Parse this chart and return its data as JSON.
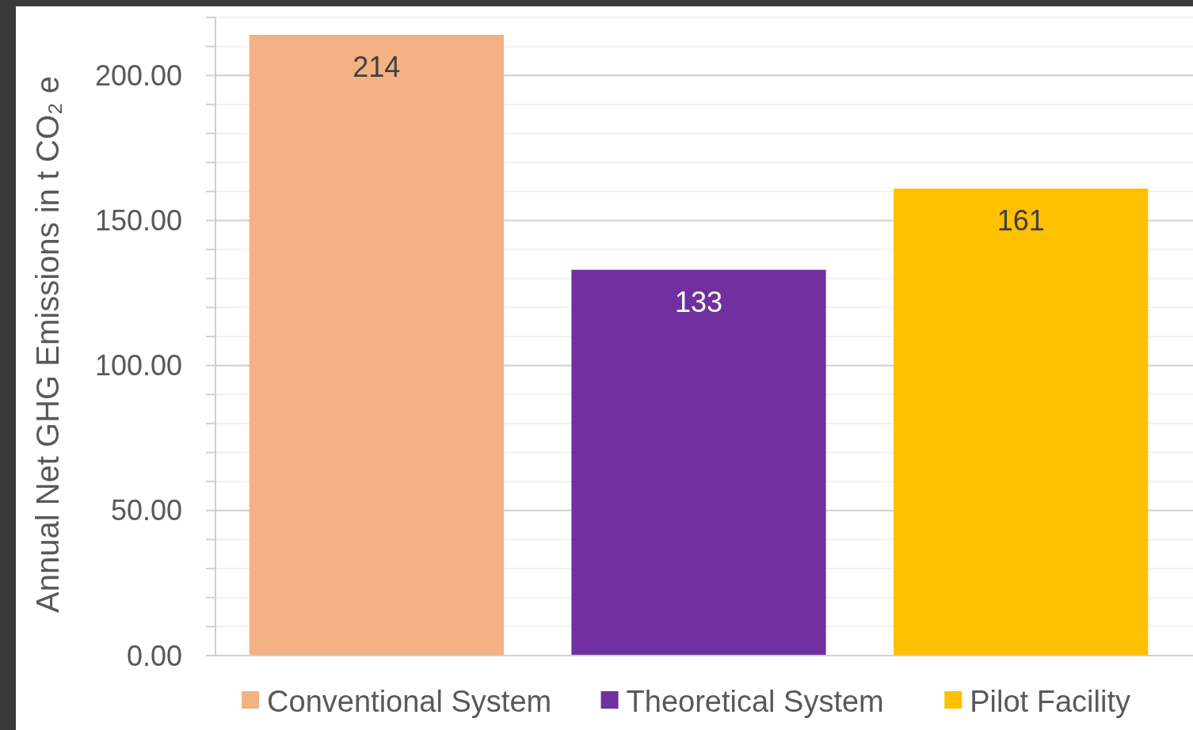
{
  "chart_data": {
    "type": "bar",
    "ylabel": "Annual Net GHG Emissions in t CO₂ e",
    "categories": [
      null,
      null,
      null
    ],
    "series": [
      {
        "name": "Conventional System",
        "color": "#f4b183",
        "values": [
          214,
          null,
          null
        ]
      },
      {
        "name": "Theoretical System",
        "color": "#7030a0",
        "values": [
          null,
          133,
          null
        ]
      },
      {
        "name": "Pilot Facility",
        "color": "#ffc000",
        "values": [
          null,
          null,
          161
        ]
      }
    ],
    "ylim": [
      0,
      220
    ],
    "yticks": [
      {
        "value": 0,
        "label": "0.00"
      },
      {
        "value": 10,
        "label": null
      },
      {
        "value": 20,
        "label": null
      },
      {
        "value": 30,
        "label": null
      },
      {
        "value": 40,
        "label": null
      },
      {
        "value": 50,
        "label": "50.00"
      },
      {
        "value": 60,
        "label": null
      },
      {
        "value": 70,
        "label": null
      },
      {
        "value": 80,
        "label": null
      },
      {
        "value": 90,
        "label": null
      },
      {
        "value": 100,
        "label": "100.00"
      },
      {
        "value": 110,
        "label": null
      },
      {
        "value": 120,
        "label": null
      },
      {
        "value": 130,
        "label": null
      },
      {
        "value": 140,
        "label": null
      },
      {
        "value": 150,
        "label": "150.00"
      },
      {
        "value": 160,
        "label": null
      },
      {
        "value": 170,
        "label": null
      },
      {
        "value": 180,
        "label": null
      },
      {
        "value": 190,
        "label": null
      },
      {
        "value": 200,
        "label": "200.00"
      },
      {
        "value": 210,
        "label": null
      },
      {
        "value": 220,
        "label": null
      }
    ],
    "grid": true,
    "legend": "bottom",
    "data_labels": true
  }
}
